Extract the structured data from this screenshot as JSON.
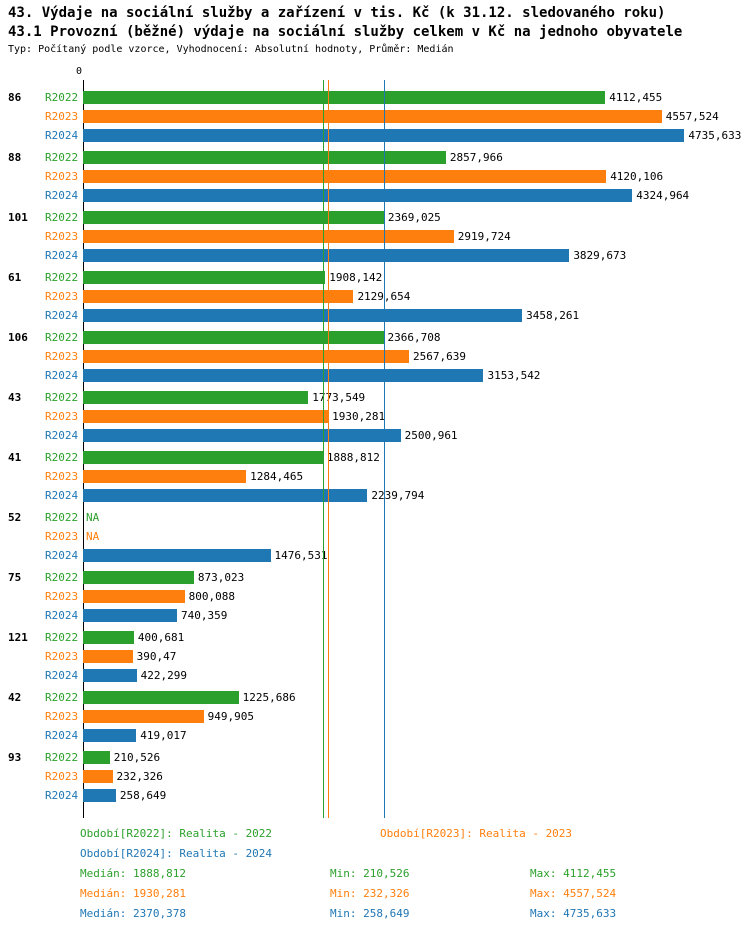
{
  "chart_data": {
    "type": "bar",
    "orientation": "horizontal",
    "title": "43. Výdaje na sociální služby a zařízení v tis. Kč (k 31.12. sledovaného roku)",
    "subtitle": "43.1 Provozní (běžné) výdaje na sociální služby celkem v Kč na jednoho obyvatele",
    "meta": "Typ: Počítaný podle vzorce, Vyhodnocení: Absolutní hodnoty, Průměr: Medián",
    "categories": [
      "86",
      "88",
      "101",
      "61",
      "106",
      "43",
      "41",
      "52",
      "75",
      "121",
      "42",
      "93"
    ],
    "series": [
      {
        "name": "R2022",
        "color": "#2ca02c",
        "values": [
          4112.455,
          2857.966,
          2369.025,
          1908.142,
          2366.708,
          1773.549,
          1888.812,
          null,
          873.023,
          400.681,
          1225.686,
          210.526
        ],
        "labels": [
          "4112,455",
          "2857,966",
          "2369,025",
          "1908,142",
          "2366,708",
          "1773,549",
          "1888,812",
          "NA",
          "873,023",
          "400,681",
          "1225,686",
          "210,526"
        ]
      },
      {
        "name": "R2023",
        "color": "#ff7f0e",
        "values": [
          4557.524,
          4120.106,
          2919.724,
          2129.654,
          2567.639,
          1930.281,
          1284.465,
          null,
          800.088,
          390.47,
          949.905,
          232.326
        ],
        "labels": [
          "4557,524",
          "4120,106",
          "2919,724",
          "2129,654",
          "2567,639",
          "1930,281",
          "1284,465",
          "NA",
          "800,088",
          "390,47",
          "949,905",
          "232,326"
        ]
      },
      {
        "name": "R2024",
        "color": "#1f77b4",
        "values": [
          4735.633,
          4324.964,
          3829.673,
          3458.261,
          3153.542,
          2500.961,
          2239.794,
          1476.531,
          740.359,
          422.299,
          419.017,
          258.649
        ],
        "labels": [
          "4735,633",
          "4324,964",
          "3829,673",
          "3458,261",
          "3153,542",
          "2500,961",
          "2239,794",
          "1476,531",
          "740,359",
          "422,299",
          "419,017",
          "258,649"
        ]
      }
    ],
    "medians": [
      {
        "series": "R2022",
        "value": 1888.812,
        "color": "#2ca02c"
      },
      {
        "series": "R2023",
        "value": 1930.281,
        "color": "#ff7f0e"
      },
      {
        "series": "R2024",
        "value": 2370.378,
        "color": "#1f77b4"
      }
    ],
    "axis": {
      "origin_label": "0",
      "xmax": 4780
    },
    "legend_position": "bottom",
    "grid": false
  },
  "legend": {
    "items": [
      {
        "label": "Období[R2022]: Realita - 2022",
        "color": "#2ca02c"
      },
      {
        "label": "Období[R2023]: Realita - 2023",
        "color": "#ff7f0e"
      },
      {
        "label": "Období[R2024]: Realita - 2024",
        "color": "#1f77b4"
      }
    ]
  },
  "stats": {
    "rows": [
      {
        "median": "Medián: 1888,812",
        "min": "Min: 210,526",
        "max": "Max: 4112,455",
        "color": "#2ca02c"
      },
      {
        "median": "Medián: 1930,281",
        "min": "Min: 232,326",
        "max": "Max: 4557,524",
        "color": "#ff7f0e"
      },
      {
        "median": "Medián: 2370,378",
        "min": "Min: 258,649",
        "max": "Max: 4735,633",
        "color": "#1f77b4"
      }
    ]
  }
}
